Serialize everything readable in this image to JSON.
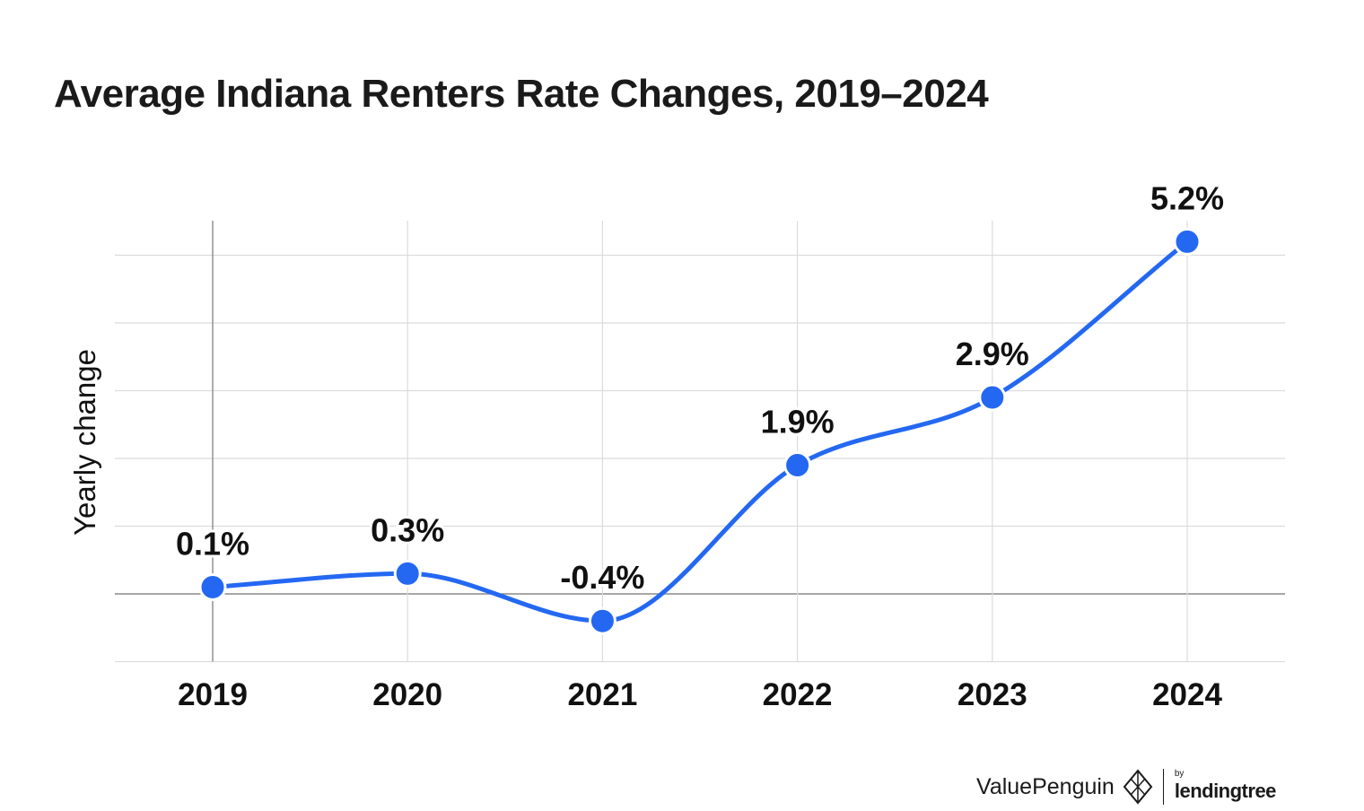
{
  "chart_data": {
    "type": "line",
    "title": "Average Indiana Renters Rate Changes, 2019–2024",
    "ylabel": "Yearly change",
    "xlabel": "",
    "categories": [
      "2019",
      "2020",
      "2021",
      "2022",
      "2023",
      "2024"
    ],
    "values": [
      0.1,
      0.3,
      -0.4,
      1.9,
      2.9,
      5.2
    ],
    "data_labels": [
      "0.1%",
      "0.3%",
      "-0.4%",
      "1.9%",
      "2.9%",
      "5.2%"
    ],
    "ylim": [
      -1,
      5.5
    ],
    "y_gridlines": [
      -1,
      0,
      1,
      2,
      3,
      4,
      5
    ],
    "grid": true,
    "line_color": "#2468f2",
    "gridline_color": "#dcdcdc",
    "baseline_color": "#8a8a8a"
  },
  "branding": {
    "name": "ValuePenguin",
    "by": "by",
    "partner": "lendingtree",
    "logo_icon": "valuepenguin-logo-icon"
  }
}
